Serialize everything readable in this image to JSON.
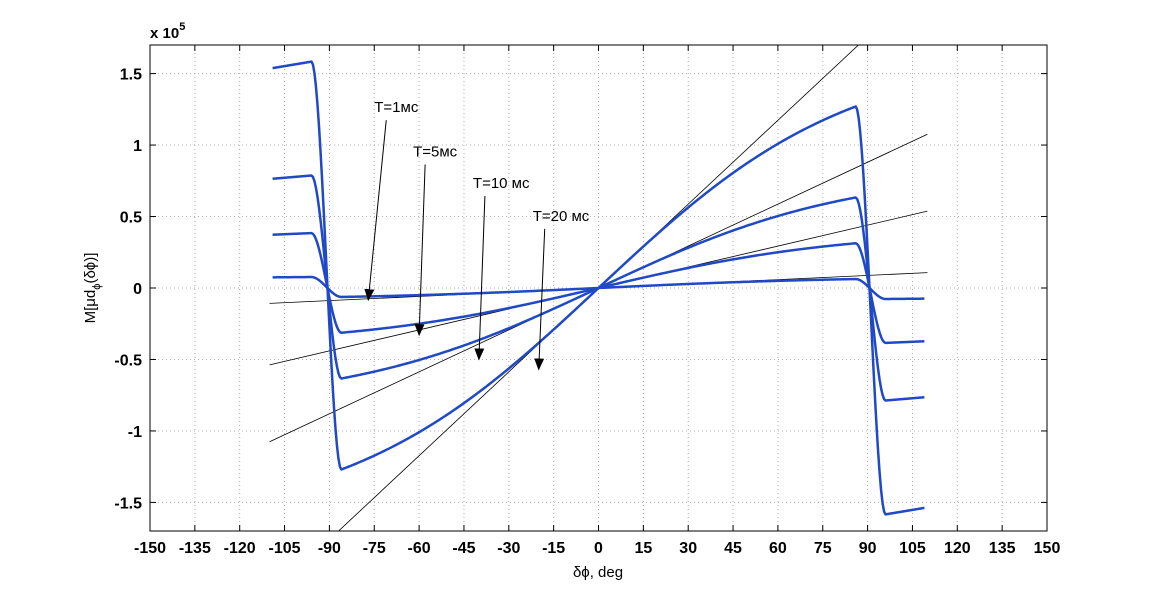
{
  "chart_data": {
    "type": "line",
    "xlabel": "δϕ, deg",
    "ylabel_parts": {
      "main": "M[μd",
      "sub": "ϕ",
      "tail": "(δϕ)]"
    },
    "exponent_label": {
      "prefix": "x 10",
      "power": "5"
    },
    "xlim": [
      -150,
      150
    ],
    "ylim": [
      -170000,
      170000
    ],
    "x_ticks": [
      -150,
      -135,
      -120,
      -105,
      -90,
      -75,
      -60,
      -45,
      -30,
      -15,
      0,
      15,
      30,
      45,
      60,
      75,
      90,
      105,
      120,
      135,
      150
    ],
    "x_tick_labels": [
      "-150",
      "-135",
      "-120",
      "-105",
      "-90",
      "-75",
      "-60",
      "-45",
      "-30",
      "-15",
      "0",
      "15",
      "30",
      "45",
      "60",
      "75",
      "90",
      "105",
      "120",
      "135",
      "150"
    ],
    "y_ticks": [
      -150000,
      -100000,
      -50000,
      0,
      50000,
      100000,
      150000
    ],
    "y_tick_labels": [
      "-1.5",
      "-1",
      "-0.5",
      "0",
      "0.5",
      "1",
      "1.5"
    ],
    "grid": true,
    "curves": [
      {
        "amp": 8000,
        "slope": 1467.0
      },
      {
        "amp": 40000,
        "slope": 7333.0
      },
      {
        "amp": 82000,
        "slope": 14666.0
      },
      {
        "amp": 165000,
        "slope": 29333.0
      }
    ],
    "tangent_lines": [
      {
        "slope": 1467.0
      },
      {
        "slope": 7333.0
      },
      {
        "slope": 14666.0
      },
      {
        "slope": 29333.0
      }
    ],
    "annotations": [
      {
        "text": "T=1мс",
        "label_x": -75,
        "label_y": 123000,
        "arrow_x": -77,
        "arrow_y": -8500
      },
      {
        "text": "T=5мс",
        "label_x": -62,
        "label_y": 92000,
        "arrow_x": -60,
        "arrow_y": -33000
      },
      {
        "text": "T=10 мс",
        "label_x": -42,
        "label_y": 70000,
        "arrow_x": -40,
        "arrow_y": -50000
      },
      {
        "text": "T=20 мс",
        "label_x": -22,
        "label_y": 47000,
        "arrow_x": -20,
        "arrow_y": -57000
      }
    ],
    "colors": {
      "curve": "#1f49c6",
      "tangent": "#000000",
      "grid": "#b0b0b0"
    }
  }
}
